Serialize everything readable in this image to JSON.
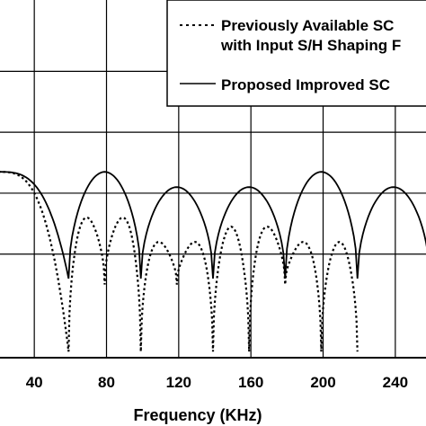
{
  "chart_data": {
    "type": "line",
    "xlabel": "Frequency (KHz)",
    "ylabel": "",
    "xlim": [
      20,
      258
    ],
    "ylim": [
      -94,
      24
    ],
    "xticks": [
      40,
      80,
      120,
      160,
      200,
      240
    ],
    "xtick_labels": [
      "40",
      "80",
      "120",
      "160",
      "200",
      "240"
    ],
    "yticks": [
      0,
      -20,
      -40,
      -60
    ],
    "grid": true,
    "legend_position": "top-right",
    "series": [
      {
        "name": "Previously Available SC with Input S/H Shaping",
        "legend_lines": [
          "Previously Available SC",
          "with Input S/H Shaping F"
        ],
        "style": "dotted",
        "color": "#000000",
        "peak_levels": [
          -33,
          -48,
          -48,
          -56,
          -56,
          -51,
          -51,
          -56,
          -56
        ],
        "null_depth": -92,
        "shallow_null_depth": -70,
        "shallow_null_indices": [
          1,
          3,
          6
        ]
      },
      {
        "name": "Proposed Improved SC",
        "legend_lines": [
          "Proposed Improved SC"
        ],
        "style": "solid",
        "color": "#000000",
        "peak_levels": [
          -33,
          -33,
          -38,
          -38,
          -33,
          -38
        ],
        "null_depth": -68
      }
    ]
  }
}
